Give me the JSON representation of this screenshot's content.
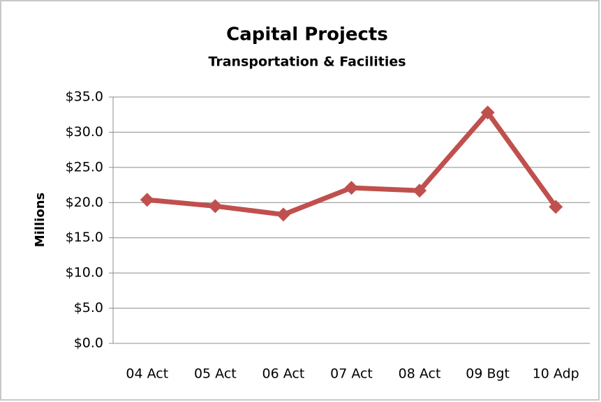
{
  "chart_data": {
    "type": "line",
    "title": "Capital Projects",
    "subtitle": "Transportation & Facilities",
    "y_label": "Millions",
    "categories": [
      "04 Act",
      "05 Act",
      "06 Act",
      "07 Act",
      "08 Act",
      "09 Bgt",
      "10 Adp"
    ],
    "series": [
      {
        "name": "Capital Projects",
        "color": "#c0504d",
        "values": [
          20.4,
          19.5,
          18.3,
          22.1,
          21.7,
          32.8,
          19.4
        ]
      }
    ],
    "ylim": [
      0,
      35
    ],
    "yticks": [
      {
        "value": 0,
        "label": "$0.0"
      },
      {
        "value": 5,
        "label": "$5.0"
      },
      {
        "value": 10,
        "label": "$10.0"
      },
      {
        "value": 15,
        "label": "$15.0"
      },
      {
        "value": 20,
        "label": "$20.0"
      },
      {
        "value": 25,
        "label": "$25.0"
      },
      {
        "value": 30,
        "label": "$30.0"
      },
      {
        "value": 35,
        "label": "$35.0"
      }
    ],
    "grid": true,
    "legend": false
  }
}
